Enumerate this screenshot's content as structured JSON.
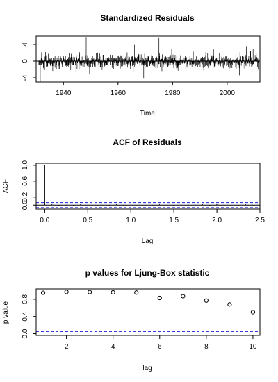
{
  "chart_data": [
    {
      "type": "line",
      "title": "Standardized Residuals",
      "xlabel": "Time",
      "ylabel": "",
      "xlim": [
        1930,
        2012
      ],
      "ylim": [
        -5,
        6
      ],
      "x_ticks": [
        1940,
        1960,
        1980,
        2000
      ],
      "y_ticks": [
        -4,
        0,
        4
      ],
      "reference_line": 0,
      "series_style": "vertical-segments-from-zero",
      "noise_sd": 0.9,
      "spikes": [
        {
          "x": 1931.5,
          "y": -5.0
        },
        {
          "x": 1948.3,
          "y": 5.8
        },
        {
          "x": 1949.6,
          "y": -3.0
        },
        {
          "x": 1966.0,
          "y": 3.9
        },
        {
          "x": 1969.4,
          "y": -4.2
        },
        {
          "x": 1975.0,
          "y": 5.7
        },
        {
          "x": 1979.7,
          "y": 3.0
        },
        {
          "x": 1995.0,
          "y": 2.8
        },
        {
          "x": 2004.5,
          "y": -3.4
        },
        {
          "x": 2007.0,
          "y": 3.6
        },
        {
          "x": 2009.5,
          "y": 3.0
        }
      ]
    },
    {
      "type": "bar",
      "title": "ACF of Residuals",
      "xlabel": "Lag",
      "ylabel": "ACF",
      "xlim": [
        -0.1,
        2.5
      ],
      "ylim": [
        -0.1,
        1.05
      ],
      "x_ticks": [
        0.0,
        0.5,
        1.0,
        1.5,
        2.0,
        2.5
      ],
      "y_ticks": [
        0.0,
        0.2,
        0.6,
        1.0
      ],
      "y_tick_labels": [
        "0.0",
        "0.2",
        "0.6",
        "1.0"
      ],
      "lag_step": 0.0833,
      "lag0_value": 1.0,
      "confidence_band": [
        -0.064,
        0.064
      ],
      "acf_values": [
        1.0,
        0.02,
        -0.03,
        0.01,
        -0.02,
        0.03,
        -0.01,
        0.02,
        0.01,
        -0.03,
        0.02,
        -0.02,
        0.01,
        0.03,
        -0.01,
        -0.02,
        0.02,
        0.01,
        -0.03,
        0.02,
        -0.01,
        0.01,
        0.02,
        -0.02,
        0.03,
        -0.01,
        0.01,
        -0.02,
        0.02,
        0.01
      ]
    },
    {
      "type": "scatter",
      "title": "p values for Ljung-Box statistic",
      "xlabel": "lag",
      "ylabel": "p value",
      "xlim": [
        0.7,
        10.3
      ],
      "ylim": [
        0.0,
        1.0
      ],
      "x_ticks": [
        2,
        4,
        6,
        8,
        10
      ],
      "y_ticks": [
        0.0,
        0.4,
        0.8
      ],
      "y_tick_labels": [
        "0.0",
        "0.4",
        "0.8"
      ],
      "significance_line": 0.05,
      "x": [
        1,
        2,
        3,
        4,
        5,
        6,
        7,
        8,
        9,
        10
      ],
      "y": [
        0.95,
        0.97,
        0.965,
        0.96,
        0.955,
        0.83,
        0.87,
        0.77,
        0.68,
        0.5
      ]
    }
  ]
}
